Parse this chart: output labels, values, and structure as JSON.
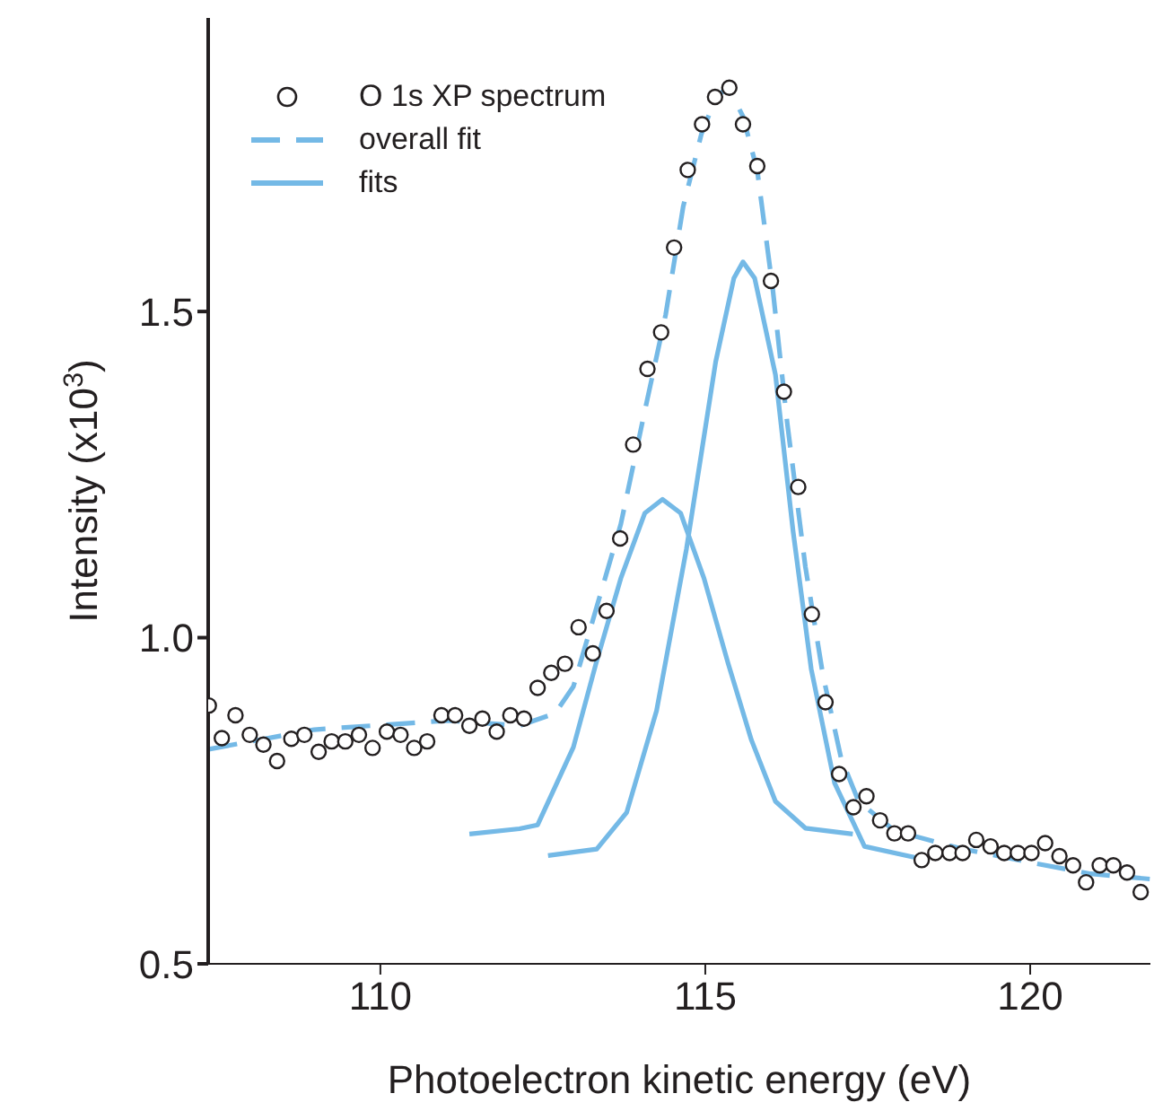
{
  "chart_data": {
    "type": "scatter",
    "xlabel": "Photoelectron kinetic energy (eV)",
    "ylabel": "Intensity (x10$^{3}$)",
    "xlim": [
      107.35,
      121.85
    ],
    "xticks": [
      110,
      115,
      120
    ],
    "ylim": [
      0.5,
      1.95
    ],
    "yticks": [
      0.5,
      {
        "value": 1,
        "label": "1.0"
      },
      1.5
    ],
    "legend": "top left",
    "series": [
      {
        "name": "O 1s XP spectrum",
        "marker": "circle",
        "color": "#231f20",
        "x": [
          107.36,
          107.56,
          107.77,
          107.99,
          108.2,
          108.41,
          108.63,
          108.83,
          109.05,
          109.25,
          109.46,
          109.67,
          109.88,
          110.1,
          110.31,
          110.52,
          110.72,
          110.94,
          111.15,
          111.37,
          111.57,
          111.79,
          112.0,
          112.21,
          112.42,
          112.63,
          112.84,
          113.05,
          113.27,
          113.48,
          113.69,
          113.89,
          114.11,
          114.32,
          114.52,
          114.73,
          114.95,
          115.15,
          115.37,
          115.58,
          115.8,
          116.01,
          116.21,
          116.43,
          116.64,
          116.85,
          117.06,
          117.28,
          117.48,
          117.69,
          117.91,
          118.12,
          118.33,
          118.54,
          118.76,
          118.96,
          119.17,
          119.39,
          119.6,
          119.81,
          120.02,
          120.23,
          120.45,
          120.66,
          120.86,
          121.07,
          121.28,
          121.49,
          121.7
        ],
        "values": [
          0.896,
          0.846,
          0.881,
          0.851,
          0.836,
          0.811,
          0.845,
          0.851,
          0.825,
          0.841,
          0.841,
          0.851,
          0.831,
          0.856,
          0.851,
          0.831,
          0.841,
          0.881,
          0.881,
          0.865,
          0.876,
          0.856,
          0.881,
          0.876,
          0.923,
          0.946,
          0.96,
          1.016,
          0.976,
          1.041,
          1.152,
          1.296,
          1.412,
          1.468,
          1.598,
          1.717,
          1.787,
          1.829,
          1.843,
          1.787,
          1.723,
          1.547,
          1.377,
          1.231,
          1.036,
          0.901,
          0.791,
          0.74,
          0.757,
          0.72,
          0.7,
          0.7,
          0.659,
          0.67,
          0.67,
          0.67,
          0.69,
          0.68,
          0.67,
          0.67,
          0.67,
          0.685,
          0.665,
          0.651,
          0.625,
          0.651,
          0.651,
          0.64,
          0.61
        ]
      },
      {
        "name": "overall fit",
        "type": "line",
        "line_style": "dashed",
        "color": "#74b9e6",
        "x": [
          107.36,
          108.98,
          111.04,
          112.14,
          112.69,
          112.97,
          113.32,
          113.7,
          114.07,
          114.39,
          114.66,
          114.94,
          115.16,
          115.35,
          115.58,
          115.8,
          116.04,
          116.26,
          116.54,
          116.81,
          117.09,
          117.36,
          117.91,
          118.92,
          119.92,
          120.93,
          121.84
        ],
        "values": [
          0.829,
          0.859,
          0.873,
          0.865,
          0.884,
          0.925,
          1.044,
          1.174,
          1.348,
          1.495,
          1.661,
          1.772,
          1.827,
          1.845,
          1.799,
          1.716,
          1.533,
          1.33,
          1.109,
          0.943,
          0.815,
          0.749,
          0.704,
          0.677,
          0.657,
          0.638,
          0.63
        ]
      },
      {
        "name": "fits",
        "type": "line",
        "line_style": "solid",
        "color": "#74b9e6",
        "x": [
          111.37,
          112.14,
          112.42,
          112.97,
          113.32,
          113.7,
          114.07,
          114.34,
          114.62,
          114.98,
          115.35,
          115.71,
          116.08,
          116.54,
          117.27
        ],
        "values": [
          0.699,
          0.707,
          0.713,
          0.832,
          0.961,
          1.091,
          1.191,
          1.212,
          1.191,
          1.091,
          0.961,
          0.843,
          0.749,
          0.708,
          0.699
        ]
      },
      {
        "type": "line",
        "line_style": "solid",
        "color": "#74b9e6",
        "x": [
          112.58,
          113.33,
          113.79,
          114.25,
          114.71,
          115.16,
          115.44,
          115.58,
          115.76,
          116.08,
          116.35,
          116.63,
          116.99,
          117.45,
          118.28,
          118.37
        ],
        "values": [
          0.666,
          0.676,
          0.732,
          0.888,
          1.136,
          1.423,
          1.551,
          1.576,
          1.551,
          1.403,
          1.164,
          0.952,
          0.777,
          0.68,
          0.662,
          0.665
        ]
      }
    ]
  }
}
